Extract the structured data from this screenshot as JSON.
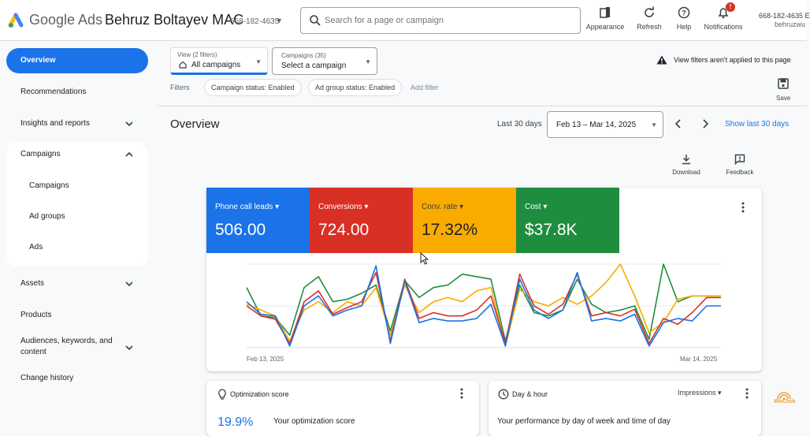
{
  "header": {
    "brand": "Google Ads",
    "account_name": "Behruz Boltayev MAC",
    "account_id": "668-182-4635",
    "search_placeholder": "Search for a page or campaign",
    "actions": [
      {
        "label": "Appearance",
        "icon": "appearance-icon"
      },
      {
        "label": "Refresh",
        "icon": "refresh-icon"
      },
      {
        "label": "Help",
        "icon": "help-icon"
      },
      {
        "label": "Notifications",
        "icon": "bell-icon",
        "badge": "!"
      }
    ],
    "account_right_id": "668-182-4635 E",
    "account_right_user": "behruzwu"
  },
  "sidebar": {
    "items": [
      {
        "label": "Overview",
        "active": true
      },
      {
        "label": "Recommendations"
      },
      {
        "label": "Insights and reports"
      },
      {
        "label": "Campaigns"
      },
      {
        "label": "Assets"
      },
      {
        "label": "Products"
      },
      {
        "label": "Audiences, keywords, and content"
      },
      {
        "label": "Change history"
      }
    ],
    "campaign_subitems": [
      "Campaigns",
      "Ad groups",
      "Ads"
    ]
  },
  "filters": {
    "view_label": "View (2 filters)",
    "view_value": "All campaigns",
    "campaigns_label": "Campaigns (35)",
    "campaigns_value": "Select a campaign",
    "warning": "View filters aren't applied to this page",
    "filters_label": "Filters",
    "chips": [
      "Campaign status: Enabled",
      "Ad group status: Enabled"
    ],
    "add_filter": "Add filter",
    "save_label": "Save"
  },
  "overview": {
    "title": "Overview",
    "range_label": "Last 30 days",
    "date_range": "Feb 13 – Mar 14, 2025",
    "show_last": "Show last 30 days",
    "download_label": "Download",
    "feedback_label": "Feedback"
  },
  "metrics": [
    {
      "label": "Phone call leads",
      "value": "506.00",
      "color": "#1a73e8"
    },
    {
      "label": "Conversions",
      "value": "724.00",
      "color": "#d93025"
    },
    {
      "label": "Conv. rate",
      "value": "17.32%",
      "color": "#f9ab00"
    },
    {
      "label": "Cost",
      "value": "$37.8K",
      "color": "#1e8e3e"
    }
  ],
  "chart_data": {
    "type": "line",
    "x_start_label": "Feb 13, 2025",
    "x_end_label": "Mar 14, 2025",
    "y_scale": "relative (no y-axis labels shown), values normalized 0-1",
    "series": [
      {
        "name": "Phone call leads",
        "color": "#1a73e8",
        "values": [
          0.55,
          0.4,
          0.38,
          0.02,
          0.5,
          0.62,
          0.38,
          0.45,
          0.5,
          0.98,
          0.05,
          0.8,
          0.3,
          0.35,
          0.32,
          0.32,
          0.35,
          0.52,
          0.02,
          0.82,
          0.45,
          0.35,
          0.45,
          0.9,
          0.32,
          0.35,
          0.32,
          0.4,
          0.02,
          0.3,
          0.35,
          0.32,
          0.5,
          0.5
        ]
      },
      {
        "name": "Conversions",
        "color": "#d93025",
        "values": [
          0.5,
          0.38,
          0.34,
          0.05,
          0.55,
          0.68,
          0.4,
          0.48,
          0.55,
          0.9,
          0.08,
          0.82,
          0.35,
          0.42,
          0.38,
          0.38,
          0.45,
          0.62,
          0.05,
          0.88,
          0.5,
          0.4,
          0.52,
          0.88,
          0.38,
          0.42,
          0.38,
          0.46,
          0.05,
          0.35,
          0.28,
          0.42,
          0.6,
          0.6
        ]
      },
      {
        "name": "Conv. rate",
        "color": "#f9ab00",
        "values": [
          0.52,
          0.45,
          0.38,
          0.08,
          0.45,
          0.55,
          0.42,
          0.55,
          0.5,
          0.72,
          0.15,
          0.75,
          0.42,
          0.55,
          0.6,
          0.55,
          0.68,
          0.72,
          0.02,
          0.7,
          0.55,
          0.5,
          0.6,
          0.52,
          0.62,
          0.78,
          1.0,
          0.62,
          0.18,
          0.3,
          0.58,
          0.62,
          0.62,
          0.62
        ]
      },
      {
        "name": "Cost",
        "color": "#1e8e3e",
        "values": [
          0.72,
          0.38,
          0.36,
          0.15,
          0.72,
          0.85,
          0.55,
          0.58,
          0.65,
          0.75,
          0.2,
          0.8,
          0.6,
          0.72,
          0.75,
          0.88,
          0.85,
          0.82,
          0.08,
          0.75,
          0.42,
          0.38,
          0.45,
          0.82,
          0.52,
          0.42,
          0.45,
          0.5,
          0.1,
          1.0,
          0.55,
          0.62,
          0.62,
          0.62
        ]
      }
    ]
  },
  "bottom_cards": {
    "optimization": {
      "title": "Optimization score",
      "score": "19.9%",
      "subtitle": "Your optimization score"
    },
    "day_hour": {
      "title": "Day & hour",
      "selector": "Impressions",
      "subtitle": "Your performance by day of week and time of day"
    }
  },
  "watermark_text": "WoClick"
}
